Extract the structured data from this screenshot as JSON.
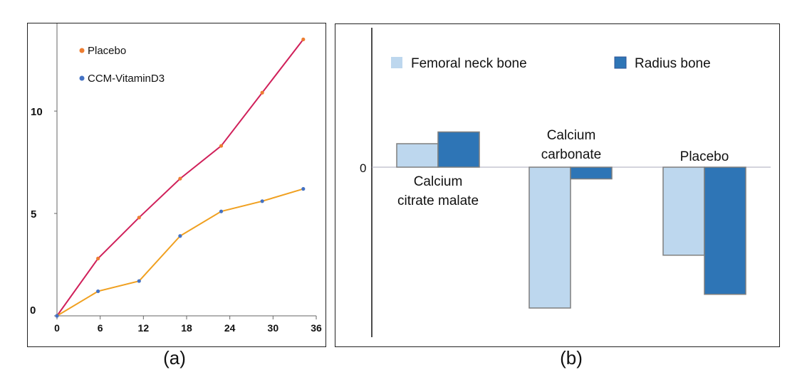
{
  "figure": {
    "caption_a": "(a)",
    "caption_b": "(b)"
  },
  "colors": {
    "placebo_line": "#d0205a",
    "placebo_marker": "#ed7d31",
    "ccm_line": "#f0a020",
    "ccm_marker": "#4472c4",
    "femoral_fill": "#bdd7ee",
    "radius_fill": "#2e75b6",
    "bar_border": "#7f7f7f"
  },
  "chart_data": [
    {
      "type": "line",
      "title": "",
      "xlabel": "",
      "ylabel": "",
      "x_ticks": [
        "0",
        "6",
        "12",
        "18",
        "24",
        "30",
        "36"
      ],
      "y_ticks": [
        "0",
        "5",
        "10"
      ],
      "xlim": [
        0,
        36
      ],
      "ylim": [
        0,
        14
      ],
      "legend_position": "top-left",
      "series": [
        {
          "name": "Placebo",
          "x": [
            0,
            5.7,
            11.4,
            17.1,
            22.8,
            28.5,
            34.2
          ],
          "y": [
            0,
            2.8,
            4.8,
            6.7,
            8.3,
            10.9,
            13.5
          ]
        },
        {
          "name": "CCM-VitaminD3",
          "x": [
            0,
            5.7,
            11.4,
            17.1,
            22.8,
            28.5,
            34.2
          ],
          "y": [
            0,
            1.2,
            1.7,
            3.9,
            5.1,
            5.6,
            6.2
          ]
        }
      ]
    },
    {
      "type": "bar",
      "title": "",
      "xlabel": "",
      "ylabel": "",
      "y_ticks": [
        "0"
      ],
      "ylim": [
        -4.4,
        4
      ],
      "legend_position": "top",
      "categories": [
        "Calcium citrate malate",
        "Calcium carbonate",
        "Placebo"
      ],
      "category_label_lines": [
        [
          "Calcium",
          "citrate malate"
        ],
        [
          "Calcium",
          "carbonate"
        ],
        [
          "Placebo"
        ]
      ],
      "series": [
        {
          "name": "Femoral neck bone",
          "values": [
            0.6,
            -3.6,
            -2.25
          ]
        },
        {
          "name": "Radius bone",
          "values": [
            0.9,
            -0.3,
            -3.25
          ]
        }
      ]
    }
  ]
}
